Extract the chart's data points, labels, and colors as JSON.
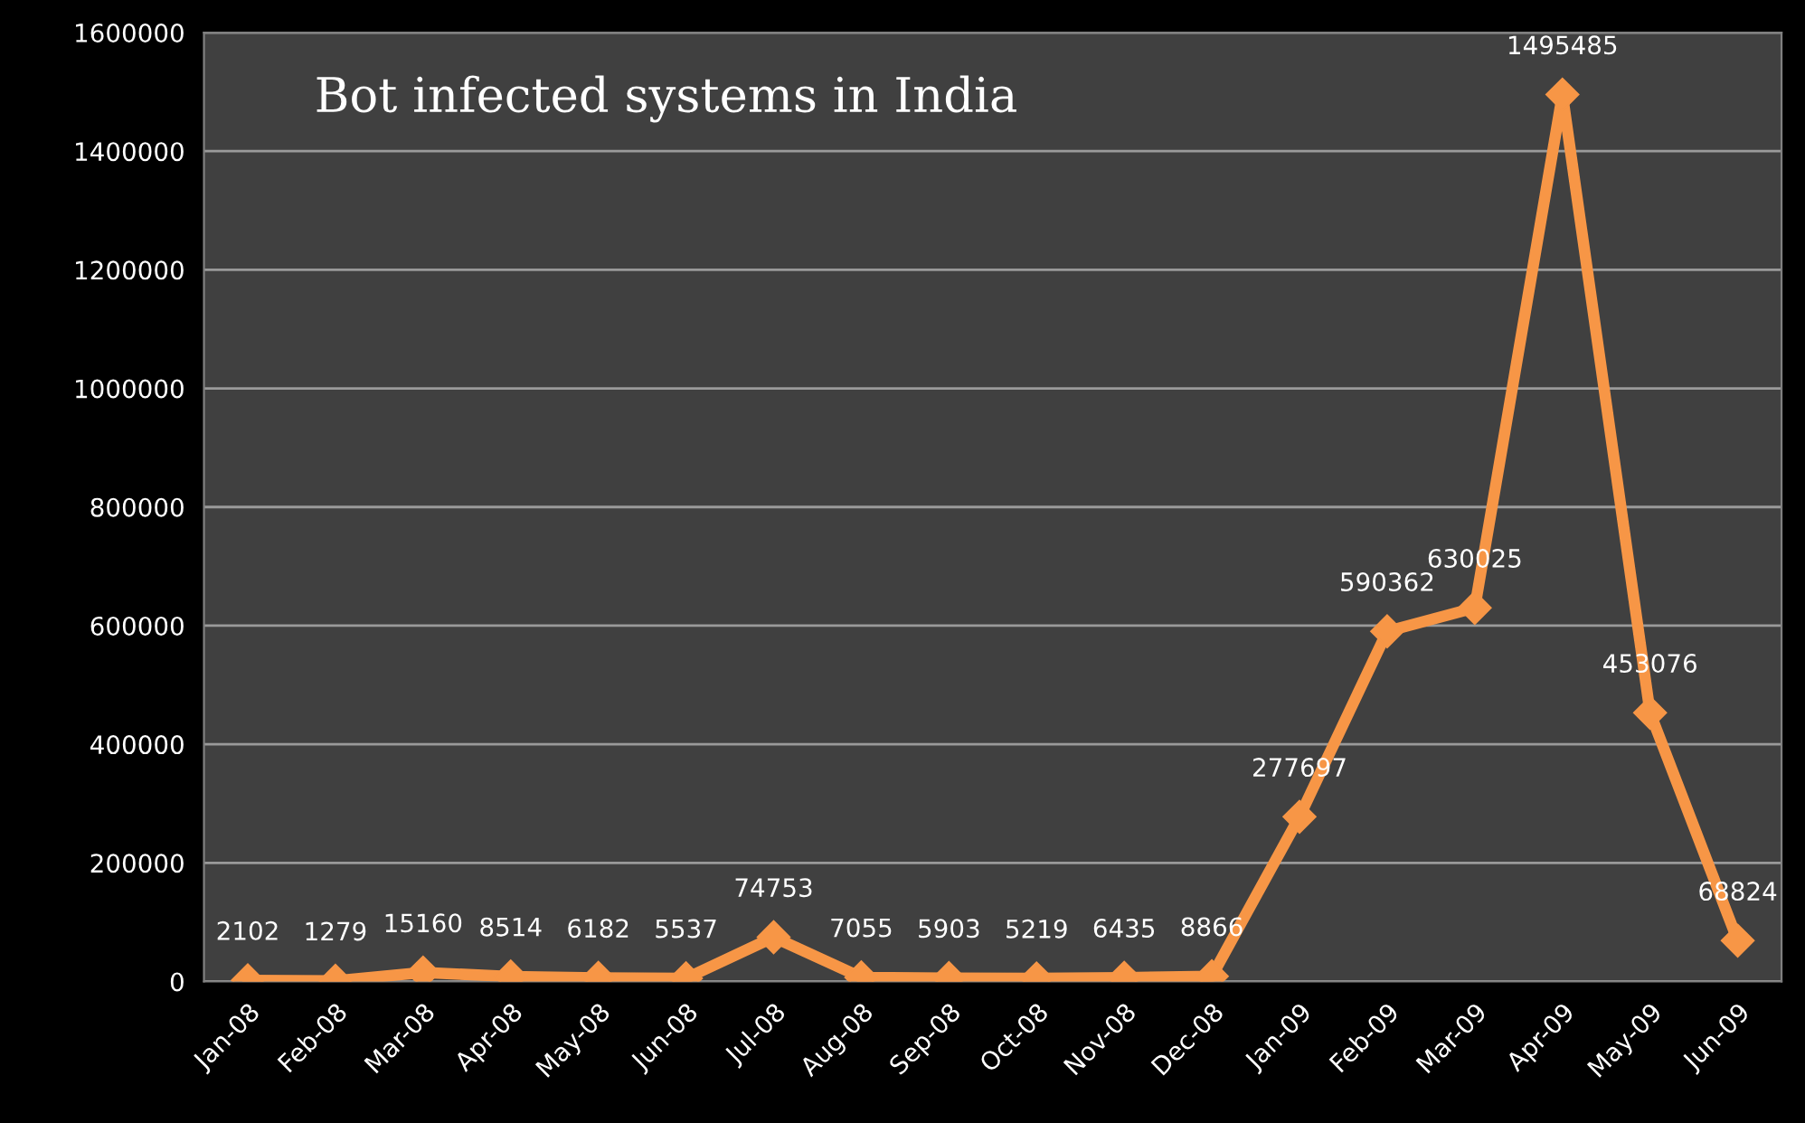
{
  "chart_data": {
    "type": "line",
    "title": "Bot infected systems in India",
    "categories": [
      "Jan-08",
      "Feb-08",
      "Mar-08",
      "Apr-08",
      "May-08",
      "Jun-08",
      "Jul-08",
      "Aug-08",
      "Sep-08",
      "Oct-08",
      "Nov-08",
      "Dec-08",
      "Jan-09",
      "Feb-09",
      "Mar-09",
      "Apr-09",
      "May-09",
      "Jun-09"
    ],
    "series": [
      {
        "color": "#f79646",
        "values": [
          2102,
          1279,
          15160,
          8514,
          6182,
          5537,
          74753,
          7055,
          5903,
          5219,
          6435,
          8866,
          277697,
          590362,
          630025,
          1495485,
          453076,
          68824
        ]
      }
    ],
    "ylim": [
      0,
      1600000
    ],
    "yticks": [
      0,
      200000,
      400000,
      600000,
      800000,
      1000000,
      1200000,
      1400000,
      1600000
    ],
    "grid": "y",
    "marker": "diamond",
    "line_style": "solid",
    "data_labels": true
  }
}
